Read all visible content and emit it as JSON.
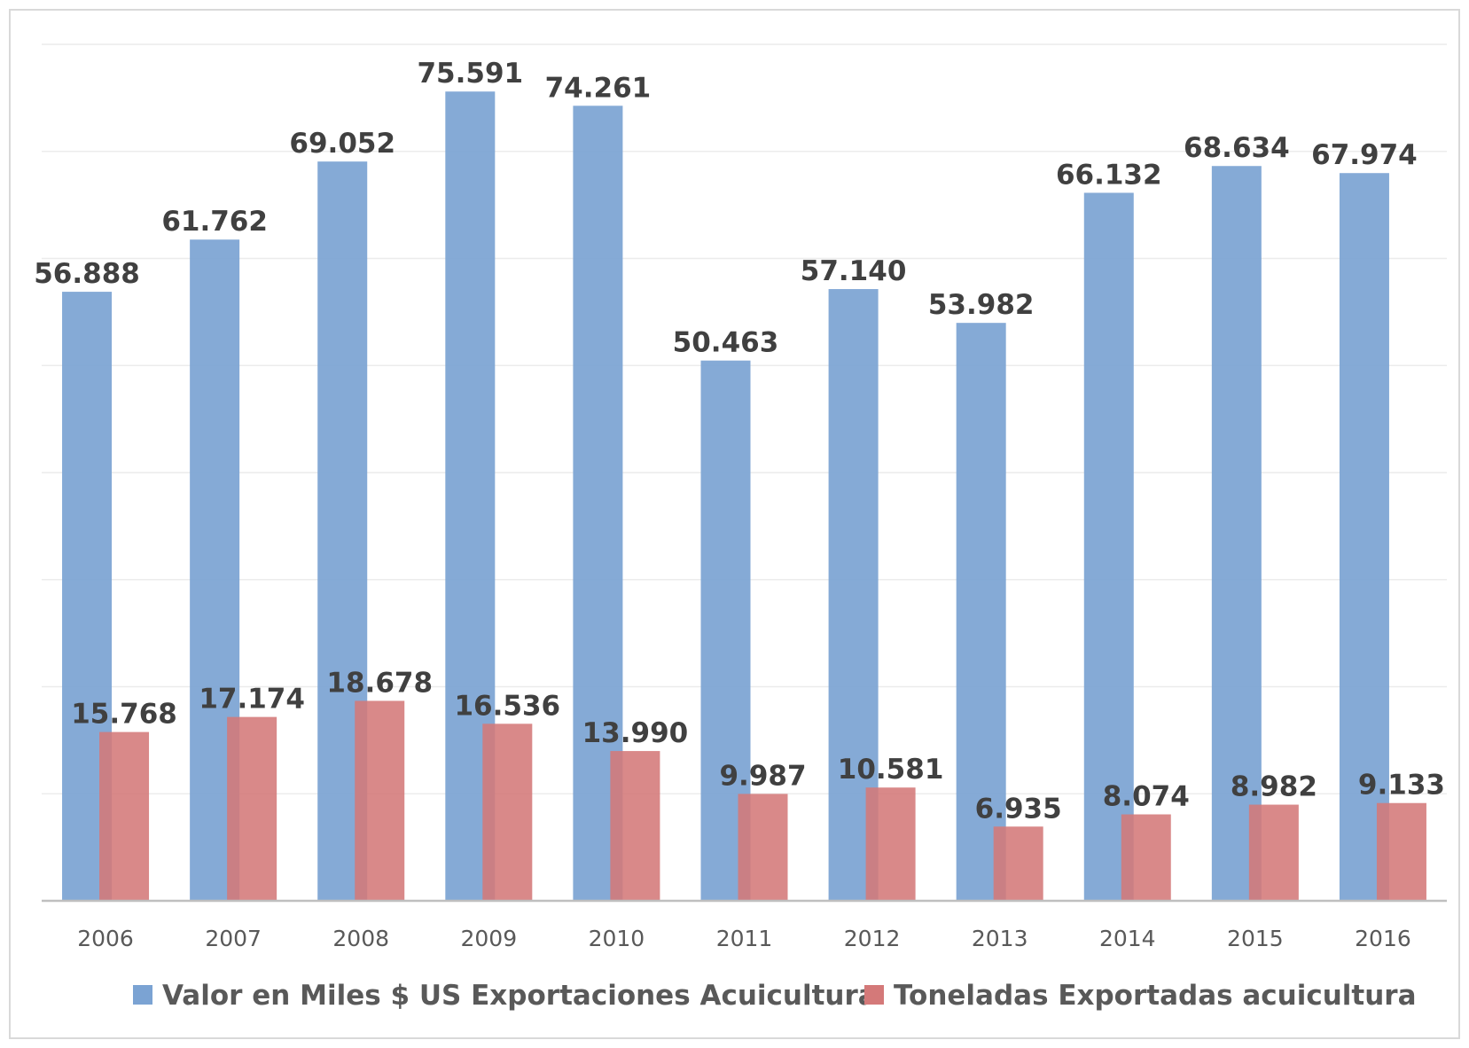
{
  "chart_data": {
    "type": "bar",
    "title": "",
    "xlabel": "",
    "ylabel": "",
    "categories": [
      "2006",
      "2007",
      "2008",
      "2009",
      "2010",
      "2011",
      "2012",
      "2013",
      "2014",
      "2015",
      "2016"
    ],
    "series": [
      {
        "name": "Valor en Miles $ US Exportaciones Acuicultura",
        "color": "#7BA3D3",
        "values": [
          56888,
          61762,
          69052,
          75591,
          74261,
          50463,
          57140,
          53982,
          66132,
          68634,
          67974
        ],
        "labels": [
          "56.888",
          "61.762",
          "69.052",
          "75.591",
          "74.261",
          "50.463",
          "57.140",
          "53.982",
          "66.132",
          "68.634",
          "67.974"
        ]
      },
      {
        "name": "Toneladas Exportadas acuicultura",
        "color": "#D47979",
        "values": [
          15768,
          17174,
          18678,
          16536,
          13990,
          9987,
          10581,
          6935,
          8074,
          8982,
          9133
        ],
        "labels": [
          "15.768",
          "17.174",
          "18.678",
          "16.536",
          "13.990",
          "9.987",
          "10.581",
          "6.935",
          "8.074",
          "8.982",
          "9.133"
        ]
      }
    ],
    "ylim": [
      0,
      80000
    ],
    "grid": true,
    "legend": "bottom",
    "axis_line_color": "#bfbfbf",
    "grid_color": "#ececec"
  }
}
